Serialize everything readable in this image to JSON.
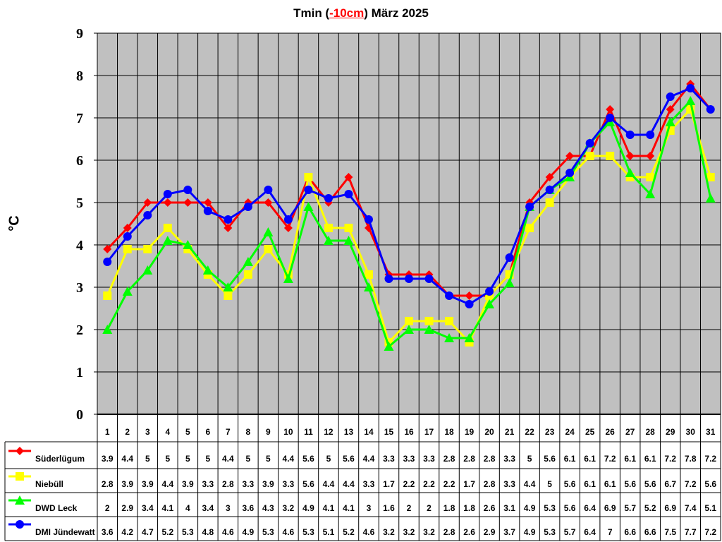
{
  "title": {
    "prefix": "Tmin (",
    "highlight": "-10cm",
    "suffix": ") März 2025"
  },
  "ylabel": "°C",
  "chart_data": {
    "type": "line",
    "x": [
      "1",
      "2",
      "3",
      "4",
      "5",
      "6",
      "7",
      "8",
      "9",
      "10",
      "11",
      "12",
      "13",
      "14",
      "15",
      "16",
      "17",
      "18",
      "19",
      "20",
      "21",
      "22",
      "23",
      "24",
      "25",
      "26",
      "27",
      "28",
      "29",
      "30",
      "31"
    ],
    "ylim": [
      0,
      9
    ],
    "yticks": [
      "0",
      "1",
      "2",
      "3",
      "4",
      "5",
      "6",
      "7",
      "8",
      "9"
    ],
    "grid": true,
    "legend_position": "data-table-below",
    "series": [
      {
        "name": "Süderlügum",
        "color": "#ff0000",
        "marker": "diamond",
        "values": [
          3.9,
          4.4,
          5,
          5,
          5,
          5,
          4.4,
          5,
          5,
          4.4,
          5.6,
          5,
          5.6,
          4.4,
          3.3,
          3.3,
          3.3,
          2.8,
          2.8,
          2.8,
          3.3,
          5,
          5.6,
          6.1,
          6.1,
          7.2,
          6.1,
          6.1,
          7.2,
          7.8,
          7.2
        ],
        "labels": [
          "3.9",
          "4.4",
          "5",
          "5",
          "5",
          "5",
          "4.4",
          "5",
          "5",
          "4.4",
          "5.6",
          "5",
          "5.6",
          "4.4",
          "3.3",
          "3.3",
          "3.3",
          "2.8",
          "2.8",
          "2.8",
          "3.3",
          "5",
          "5.6",
          "6.1",
          "6.1",
          "7.2",
          "6.1",
          "6.1",
          "7.2",
          "7.8",
          "7.2"
        ]
      },
      {
        "name": "Niebüll",
        "color": "#ffff00",
        "marker": "square",
        "values": [
          2.8,
          3.9,
          3.9,
          4.4,
          3.9,
          3.3,
          2.8,
          3.3,
          3.9,
          3.3,
          5.6,
          4.4,
          4.4,
          3.3,
          1.7,
          2.2,
          2.2,
          2.2,
          1.7,
          2.8,
          3.3,
          4.4,
          5,
          5.6,
          6.1,
          6.1,
          5.6,
          5.6,
          6.7,
          7.2,
          5.6
        ],
        "labels": [
          "2.8",
          "3.9",
          "3.9",
          "4.4",
          "3.9",
          "3.3",
          "2.8",
          "3.3",
          "3.9",
          "3.3",
          "5.6",
          "4.4",
          "4.4",
          "3.3",
          "1.7",
          "2.2",
          "2.2",
          "2.2",
          "1.7",
          "2.8",
          "3.3",
          "4.4",
          "5",
          "5.6",
          "6.1",
          "6.1",
          "5.6",
          "5.6",
          "6.7",
          "7.2",
          "5.6"
        ]
      },
      {
        "name": "DWD Leck",
        "color": "#00ff00",
        "marker": "triangle",
        "values": [
          2,
          2.9,
          3.4,
          4.1,
          4,
          3.4,
          3,
          3.6,
          4.3,
          3.2,
          4.9,
          4.1,
          4.1,
          3,
          1.6,
          2,
          2,
          1.8,
          1.8,
          2.6,
          3.1,
          4.9,
          5.3,
          5.6,
          6.4,
          6.9,
          5.7,
          5.2,
          6.9,
          7.4,
          5.1
        ],
        "labels": [
          "2",
          "2.9",
          "3.4",
          "4.1",
          "4",
          "3.4",
          "3",
          "3.6",
          "4.3",
          "3.2",
          "4.9",
          "4.1",
          "4.1",
          "3",
          "1.6",
          "2",
          "2",
          "1.8",
          "1.8",
          "2.6",
          "3.1",
          "4.9",
          "5.3",
          "5.6",
          "6.4",
          "6.9",
          "5.7",
          "5.2",
          "6.9",
          "7.4",
          "5.1"
        ]
      },
      {
        "name": "DMI Jündewatt",
        "color": "#0000ff",
        "marker": "circle",
        "values": [
          3.6,
          4.2,
          4.7,
          5.2,
          5.3,
          4.8,
          4.6,
          4.9,
          5.3,
          4.6,
          5.3,
          5.1,
          5.2,
          4.6,
          3.2,
          3.2,
          3.2,
          2.8,
          2.6,
          2.9,
          3.7,
          4.9,
          5.3,
          5.7,
          6.4,
          7,
          6.6,
          6.6,
          7.5,
          7.7,
          7.2
        ],
        "labels": [
          "3.6",
          "4.2",
          "4.7",
          "5.2",
          "5.3",
          "4.8",
          "4.6",
          "4.9",
          "5.3",
          "4.6",
          "5.3",
          "5.1",
          "5.2",
          "4.6",
          "3.2",
          "3.2",
          "3.2",
          "2.8",
          "2.6",
          "2.9",
          "3.7",
          "4.9",
          "5.3",
          "5.7",
          "6.4",
          "7",
          "6.6",
          "6.6",
          "7.5",
          "7.7",
          "7.2"
        ]
      }
    ]
  }
}
